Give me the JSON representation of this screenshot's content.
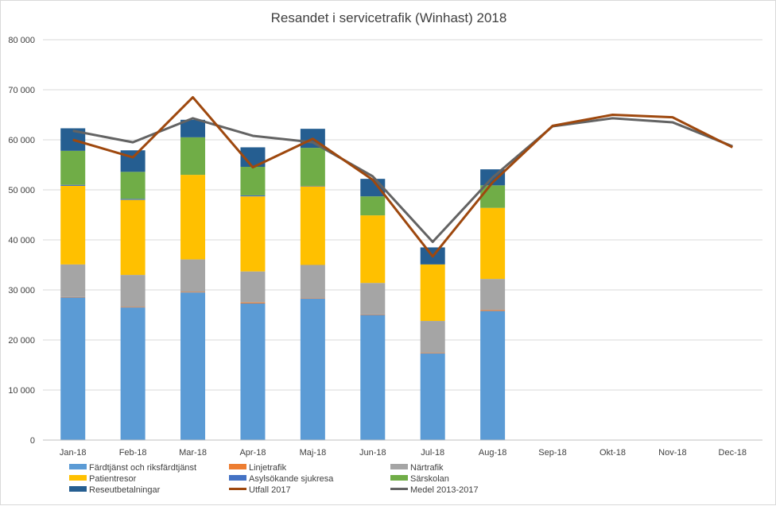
{
  "chart_data": {
    "type": "bar",
    "title": "Resandet i servicetrafik (Winhast) 2018",
    "xlabel": "",
    "ylabel": "",
    "ylim": [
      0,
      80000
    ],
    "yticks": [
      0,
      10000,
      20000,
      30000,
      40000,
      50000,
      60000,
      70000,
      80000
    ],
    "ytick_labels": [
      "0",
      "10 000",
      "20 000",
      "30 000",
      "40 000",
      "50 000",
      "60 000",
      "70 000",
      "80 000"
    ],
    "grid": true,
    "legend_position": "bottom",
    "categories": [
      "Jan-18",
      "Feb-18",
      "Mar-18",
      "Apr-18",
      "Maj-18",
      "Jun-18",
      "Jul-18",
      "Aug-18",
      "Sep-18",
      "Okt-18",
      "Nov-18",
      "Dec-18"
    ],
    "stacked_series": [
      {
        "name": "Färdtjänst och riksfärdtjänst",
        "color": "#5b9bd5",
        "values": [
          28500,
          26500,
          29500,
          27300,
          28300,
          25000,
          17300,
          25800,
          null,
          null,
          null,
          null
        ]
      },
      {
        "name": "Linjetrafik",
        "color": "#ed7d31",
        "values": [
          100,
          100,
          100,
          200,
          100,
          100,
          100,
          200,
          null,
          null,
          null,
          null
        ]
      },
      {
        "name": "Närtrafik",
        "color": "#a5a5a5",
        "values": [
          6500,
          6400,
          6500,
          6200,
          6600,
          6300,
          6400,
          6200,
          null,
          null,
          null,
          null
        ]
      },
      {
        "name": "Patientresor",
        "color": "#ffc000",
        "values": [
          15700,
          15000,
          16900,
          15000,
          15700,
          13500,
          11300,
          14200,
          null,
          null,
          null,
          null
        ]
      },
      {
        "name": "Asylsökande sjukresa",
        "color": "#4472c4",
        "values": [
          200,
          200,
          0,
          200,
          100,
          0,
          0,
          0,
          null,
          null,
          null,
          null
        ]
      },
      {
        "name": "Särskolan",
        "color": "#70ad47",
        "values": [
          6800,
          5400,
          7500,
          5700,
          7600,
          3800,
          0,
          4500,
          null,
          null,
          null,
          null
        ]
      },
      {
        "name": "Reseutbetalningar",
        "color": "#255e91",
        "values": [
          4500,
          4300,
          3500,
          3900,
          3800,
          3500,
          3400,
          3200,
          null,
          null,
          null,
          null
        ]
      }
    ],
    "line_series": [
      {
        "name": "Utfall 2017",
        "color": "#9e480e",
        "values": [
          60000,
          56500,
          68500,
          54500,
          60200,
          52000,
          36700,
          51500,
          62800,
          65000,
          64500,
          58500
        ]
      },
      {
        "name": "Medel 2013-2017",
        "color": "#636363",
        "values": [
          61800,
          59500,
          64300,
          60800,
          59500,
          52700,
          39600,
          52500,
          62700,
          64300,
          63500,
          58700
        ]
      }
    ],
    "legend_order": [
      "Färdtjänst och riksfärdtjänst",
      "Linjetrafik",
      "Närtrafik",
      "Patientresor",
      "Asylsökande sjukresa",
      "Särskolan",
      "Reseutbetalningar",
      "Utfall 2017",
      "Medel 2013-2017"
    ]
  }
}
